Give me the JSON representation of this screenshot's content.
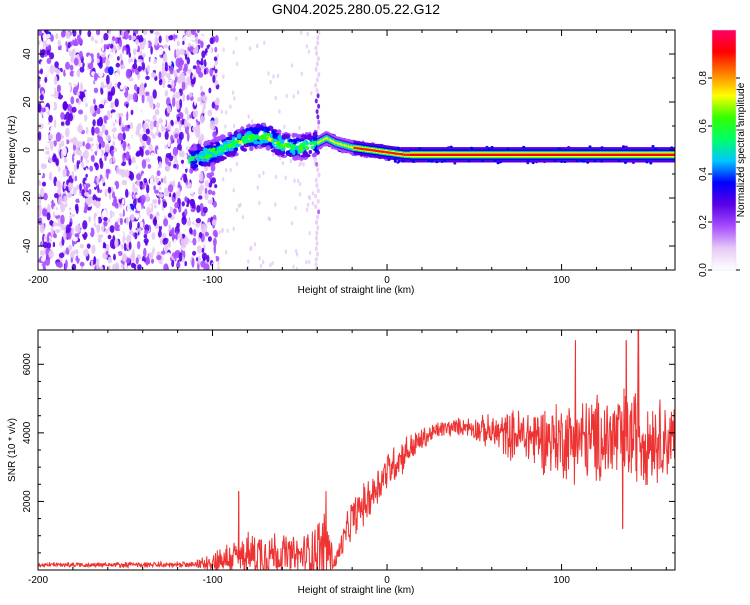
{
  "title": "GN04.2025.280.05.22.G12",
  "chart_data": [
    {
      "type": "heatmap",
      "title": "GN04.2025.280.05.22.G12",
      "xlabel": "Height of straight line (km)",
      "ylabel": "Frequency (Hz)",
      "xlim": [
        -200,
        165
      ],
      "ylim": [
        -50,
        50
      ],
      "x_ticks": [
        -200,
        -100,
        0,
        100
      ],
      "y_ticks": [
        -40,
        -20,
        0,
        20,
        40
      ],
      "colorbar": {
        "label": "Normalized spectral amplitude",
        "range": [
          0,
          1
        ],
        "ticks": [
          "0.0",
          "0.2",
          "0.4",
          "0.6",
          "0.8"
        ],
        "colors": [
          "#ffffff",
          "#e6c9f5",
          "#a64dff",
          "#5a00e6",
          "#0000ff",
          "#00c8ff",
          "#00ff66",
          "#33ff00",
          "#ffff00",
          "#ff8000",
          "#ff0000",
          "#ff0066"
        ]
      },
      "ridge": {
        "points": [
          {
            "x": -113,
            "freq": -4
          },
          {
            "x": -100,
            "freq": -1
          },
          {
            "x": -90,
            "freq": 2
          },
          {
            "x": -80,
            "freq": 5
          },
          {
            "x": -70,
            "freq": 6
          },
          {
            "x": -60,
            "freq": 2
          },
          {
            "x": -50,
            "freq": 1
          },
          {
            "x": -40,
            "freq": 3
          },
          {
            "x": -35,
            "freq": 5
          },
          {
            "x": -30,
            "freq": 3
          },
          {
            "x": -20,
            "freq": 1
          },
          {
            "x": -10,
            "freq": 0
          },
          {
            "x": 0,
            "freq": -1
          },
          {
            "x": 10,
            "freq": -2
          },
          {
            "x": 165,
            "freq": -2
          }
        ],
        "strong_from_x": 0
      },
      "noise_region_x": [
        -200,
        -100
      ],
      "spike_x": -40
    },
    {
      "type": "line",
      "title": "",
      "xlabel": "Height of straight line (km)",
      "ylabel": "SNR (10 * v/v)",
      "xlim": [
        -200,
        165
      ],
      "ylim": [
        0,
        7000
      ],
      "x_ticks": [
        -200,
        -100,
        0,
        100
      ],
      "y_ticks": [
        2000,
        4000,
        6000
      ],
      "series": [
        {
          "name": "SNR",
          "color": "#ee3333",
          "envelope": [
            {
              "x": -200,
              "base": 150,
              "amp": 80
            },
            {
              "x": -110,
              "base": 150,
              "amp": 100
            },
            {
              "x": -95,
              "base": 300,
              "amp": 500
            },
            {
              "x": -70,
              "base": 500,
              "amp": 900
            },
            {
              "x": -50,
              "base": 400,
              "amp": 600
            },
            {
              "x": -35,
              "base": 700,
              "amp": 1300
            },
            {
              "x": -30,
              "base": 200,
              "amp": 300
            },
            {
              "x": -20,
              "base": 1500,
              "amp": 700
            },
            {
              "x": -10,
              "base": 2100,
              "amp": 700
            },
            {
              "x": 0,
              "base": 2900,
              "amp": 700
            },
            {
              "x": 10,
              "base": 3400,
              "amp": 600
            },
            {
              "x": 20,
              "base": 3800,
              "amp": 400
            },
            {
              "x": 30,
              "base": 4100,
              "amp": 300
            },
            {
              "x": 45,
              "base": 4200,
              "amp": 300
            },
            {
              "x": 60,
              "base": 4000,
              "amp": 600
            },
            {
              "x": 80,
              "base": 3900,
              "amp": 1000
            },
            {
              "x": 100,
              "base": 3800,
              "amp": 1300
            },
            {
              "x": 120,
              "base": 3800,
              "amp": 1500
            },
            {
              "x": 140,
              "base": 3900,
              "amp": 1700
            },
            {
              "x": 165,
              "base": 3800,
              "amp": 1200
            }
          ],
          "peaks": [
            {
              "x": 108,
              "value": 6700
            },
            {
              "x": 137,
              "value": 6700
            },
            {
              "x": 144,
              "value": 7000
            },
            {
              "x": -85,
              "value": 2300
            },
            {
              "x": -35,
              "value": 2300
            },
            {
              "x": 135,
              "value": 1200
            }
          ]
        }
      ]
    }
  ]
}
